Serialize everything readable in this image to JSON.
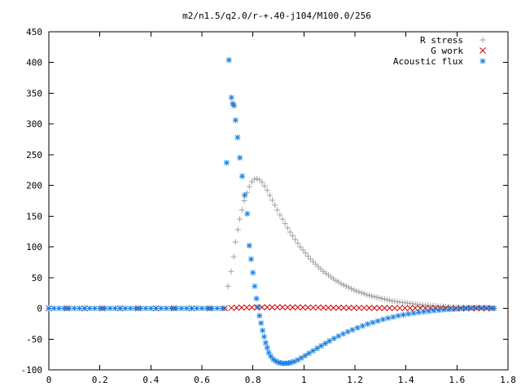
{
  "chart_data": {
    "type": "scatter",
    "title": "m2/n1.5/q2.0/r-+.40-j104/M100.0/256",
    "xlabel": "",
    "ylabel": "",
    "xlim": [
      0,
      1.8
    ],
    "ylim": [
      -100,
      450
    ],
    "x_ticks": [
      {
        "value": 0,
        "label": "0"
      },
      {
        "value": 0.2,
        "label": "0.2"
      },
      {
        "value": 0.4,
        "label": "0.4"
      },
      {
        "value": 0.6,
        "label": "0.6"
      },
      {
        "value": 0.8,
        "label": "0.8"
      },
      {
        "value": 1.0,
        "label": "1"
      },
      {
        "value": 1.2,
        "label": "1.2"
      },
      {
        "value": 1.4,
        "label": "1.4"
      },
      {
        "value": 1.6,
        "label": "1.6"
      },
      {
        "value": 1.8,
        "label": "1.8"
      }
    ],
    "y_ticks": [
      {
        "value": -100,
        "label": "-100"
      },
      {
        "value": -50,
        "label": "-50"
      },
      {
        "value": 0,
        "label": "0"
      },
      {
        "value": 50,
        "label": "50"
      },
      {
        "value": 100,
        "label": "100"
      },
      {
        "value": 150,
        "label": "150"
      },
      {
        "value": 200,
        "label": "200"
      },
      {
        "value": 250,
        "label": "250"
      },
      {
        "value": 300,
        "label": "300"
      },
      {
        "value": 350,
        "label": "350"
      },
      {
        "value": 400,
        "label": "400"
      },
      {
        "value": 450,
        "label": "450"
      }
    ],
    "grid": false,
    "legend_position": "top-right",
    "series": [
      {
        "name": "R stress",
        "marker": "plus",
        "color": "#a0a0a0",
        "points": [
          [
            0.0,
            0.0
          ],
          [
            0.07,
            0.0
          ],
          [
            0.14,
            0.0
          ],
          [
            0.21,
            0.0
          ],
          [
            0.28,
            0.0
          ],
          [
            0.35,
            0.0
          ],
          [
            0.42,
            0.0
          ],
          [
            0.49,
            0.0
          ],
          [
            0.56,
            0.0
          ],
          [
            0.63,
            0.0
          ],
          [
            0.69,
            0.0
          ],
          [
            0.702,
            36.0
          ],
          [
            0.715,
            60.0
          ],
          [
            0.725,
            84.0
          ],
          [
            0.732,
            108.0
          ],
          [
            0.741,
            128.0
          ],
          [
            0.748,
            145.0
          ],
          [
            0.757,
            160.0
          ],
          [
            0.766,
            175.0
          ],
          [
            0.776,
            188.0
          ],
          [
            0.786,
            198.0
          ],
          [
            0.796,
            206.0
          ],
          [
            0.806,
            210.0
          ],
          [
            0.816,
            211.0
          ],
          [
            0.826,
            209.0
          ],
          [
            0.836,
            205.0
          ],
          [
            0.846,
            199.0
          ],
          [
            0.856,
            192.0
          ],
          [
            0.866,
            184.0
          ],
          [
            0.876,
            176.0
          ],
          [
            0.886,
            168.0
          ],
          [
            0.896,
            160.0
          ],
          [
            0.906,
            152.0
          ],
          [
            0.916,
            145.0
          ],
          [
            0.926,
            138.0
          ],
          [
            0.936,
            131.0
          ],
          [
            0.946,
            124.0
          ],
          [
            0.956,
            118.0
          ],
          [
            0.966,
            112.0
          ],
          [
            0.976,
            106.0
          ],
          [
            0.986,
            100.0
          ],
          [
            0.996,
            95.0
          ],
          [
            1.006,
            90.0
          ],
          [
            1.016,
            85.0
          ],
          [
            1.026,
            80.0
          ],
          [
            1.036,
            76.0
          ],
          [
            1.046,
            72.0
          ],
          [
            1.056,
            68.0
          ],
          [
            1.066,
            64.0
          ],
          [
            1.076,
            60.0
          ],
          [
            1.086,
            57.0
          ],
          [
            1.096,
            54.0
          ],
          [
            1.106,
            51.0
          ],
          [
            1.116,
            48.0
          ],
          [
            1.126,
            45.0
          ],
          [
            1.136,
            43.0
          ],
          [
            1.146,
            40.0
          ],
          [
            1.156,
            38.0
          ],
          [
            1.166,
            36.0
          ],
          [
            1.176,
            34.0
          ],
          [
            1.186,
            32.0
          ],
          [
            1.196,
            30.0
          ],
          [
            1.206,
            28.0
          ],
          [
            1.216,
            27.0
          ],
          [
            1.226,
            25.0
          ],
          [
            1.236,
            24.0
          ],
          [
            1.246,
            22.0
          ],
          [
            1.256,
            21.0
          ],
          [
            1.266,
            20.0
          ],
          [
            1.276,
            19.0
          ],
          [
            1.286,
            18.0
          ],
          [
            1.296,
            17.0
          ],
          [
            1.306,
            16.0
          ],
          [
            1.316,
            15.0
          ],
          [
            1.326,
            14.0
          ],
          [
            1.336,
            13.0
          ],
          [
            1.346,
            12.0
          ],
          [
            1.356,
            11.5
          ],
          [
            1.366,
            11.0
          ],
          [
            1.376,
            10.0
          ],
          [
            1.386,
            9.5
          ],
          [
            1.396,
            9.0
          ],
          [
            1.406,
            8.5
          ],
          [
            1.416,
            8.0
          ],
          [
            1.426,
            7.5
          ],
          [
            1.436,
            7.0
          ],
          [
            1.446,
            6.5
          ],
          [
            1.456,
            6.0
          ],
          [
            1.466,
            5.5
          ],
          [
            1.476,
            5.0
          ],
          [
            1.486,
            4.8
          ],
          [
            1.496,
            4.5
          ],
          [
            1.506,
            4.2
          ],
          [
            1.516,
            4.0
          ],
          [
            1.526,
            3.6
          ],
          [
            1.536,
            3.3
          ],
          [
            1.546,
            3.0
          ],
          [
            1.556,
            2.8
          ],
          [
            1.566,
            2.5
          ],
          [
            1.576,
            2.3
          ],
          [
            1.586,
            2.0
          ],
          [
            1.596,
            1.8
          ],
          [
            1.606,
            1.6
          ],
          [
            1.616,
            1.4
          ],
          [
            1.626,
            1.2
          ],
          [
            1.636,
            1.0
          ],
          [
            1.646,
            0.9
          ],
          [
            1.656,
            0.8
          ],
          [
            1.666,
            0.6
          ],
          [
            1.676,
            0.5
          ],
          [
            1.686,
            0.4
          ],
          [
            1.696,
            0.3
          ],
          [
            1.706,
            0.2
          ],
          [
            1.716,
            0.1
          ],
          [
            1.726,
            0.1
          ],
          [
            1.736,
            0.0
          ],
          [
            1.746,
            0.0
          ]
        ]
      },
      {
        "name": "G work",
        "marker": "cross",
        "color": "#cc0000",
        "points": [
          [
            0.0,
            0.0
          ],
          [
            0.07,
            0.0
          ],
          [
            0.14,
            0.0
          ],
          [
            0.21,
            0.0
          ],
          [
            0.28,
            0.0
          ],
          [
            0.35,
            0.0
          ],
          [
            0.42,
            0.0
          ],
          [
            0.49,
            0.0
          ],
          [
            0.56,
            0.0
          ],
          [
            0.63,
            0.0
          ],
          [
            0.69,
            0.0
          ],
          [
            0.716,
            0.8
          ],
          [
            0.736,
            1.0
          ],
          [
            0.756,
            1.2
          ],
          [
            0.776,
            1.3
          ],
          [
            0.796,
            1.5
          ],
          [
            0.816,
            1.6
          ],
          [
            0.836,
            1.7
          ],
          [
            0.856,
            1.7
          ],
          [
            0.876,
            1.7
          ],
          [
            0.896,
            1.7
          ],
          [
            0.916,
            1.7
          ],
          [
            0.936,
            1.6
          ],
          [
            0.956,
            1.6
          ],
          [
            0.976,
            1.5
          ],
          [
            0.996,
            1.5
          ],
          [
            1.016,
            1.4
          ],
          [
            1.036,
            1.3
          ],
          [
            1.056,
            1.3
          ],
          [
            1.076,
            1.2
          ],
          [
            1.096,
            1.1
          ],
          [
            1.116,
            1.1
          ],
          [
            1.136,
            1.0
          ],
          [
            1.156,
            1.0
          ],
          [
            1.176,
            0.9
          ],
          [
            1.196,
            0.9
          ],
          [
            1.216,
            0.8
          ],
          [
            1.236,
            0.8
          ],
          [
            1.256,
            0.7
          ],
          [
            1.276,
            0.7
          ],
          [
            1.296,
            0.6
          ],
          [
            1.316,
            0.6
          ],
          [
            1.336,
            0.6
          ],
          [
            1.356,
            0.5
          ],
          [
            1.376,
            0.5
          ],
          [
            1.396,
            0.5
          ],
          [
            1.416,
            0.4
          ],
          [
            1.436,
            0.4
          ],
          [
            1.456,
            0.4
          ],
          [
            1.476,
            0.3
          ],
          [
            1.496,
            0.3
          ],
          [
            1.516,
            0.3
          ],
          [
            1.536,
            0.3
          ],
          [
            1.556,
            0.2
          ],
          [
            1.576,
            0.2
          ],
          [
            1.596,
            0.2
          ],
          [
            1.616,
            0.2
          ],
          [
            1.636,
            0.1
          ],
          [
            1.656,
            0.1
          ],
          [
            1.676,
            0.1
          ],
          [
            1.696,
            0.1
          ],
          [
            1.716,
            0.1
          ],
          [
            1.736,
            0.0
          ]
        ]
      },
      {
        "name": "Acoustic flux",
        "marker": "star",
        "color": "#1a80e0",
        "points": [
          [
            0.0,
            0.0
          ],
          [
            0.02,
            0.0
          ],
          [
            0.04,
            0.0
          ],
          [
            0.06,
            0.0
          ],
          [
            0.08,
            0.0
          ],
          [
            0.1,
            0.0
          ],
          [
            0.12,
            0.0
          ],
          [
            0.14,
            0.0
          ],
          [
            0.16,
            0.0
          ],
          [
            0.18,
            0.0
          ],
          [
            0.2,
            0.0
          ],
          [
            0.22,
            0.0
          ],
          [
            0.24,
            0.0
          ],
          [
            0.26,
            0.0
          ],
          [
            0.28,
            0.0
          ],
          [
            0.3,
            0.0
          ],
          [
            0.32,
            0.0
          ],
          [
            0.34,
            0.0
          ],
          [
            0.36,
            0.0
          ],
          [
            0.38,
            0.0
          ],
          [
            0.4,
            0.0
          ],
          [
            0.42,
            0.0
          ],
          [
            0.44,
            0.0
          ],
          [
            0.46,
            0.0
          ],
          [
            0.48,
            0.0
          ],
          [
            0.5,
            0.0
          ],
          [
            0.52,
            0.0
          ],
          [
            0.54,
            0.0
          ],
          [
            0.56,
            0.0
          ],
          [
            0.58,
            0.0
          ],
          [
            0.6,
            0.0
          ],
          [
            0.62,
            0.0
          ],
          [
            0.64,
            0.0
          ],
          [
            0.66,
            0.0
          ],
          [
            0.68,
            0.0
          ],
          [
            0.697,
            237.0
          ],
          [
            0.706,
            404.0
          ],
          [
            0.716,
            343.0
          ],
          [
            0.721,
            333.0
          ],
          [
            0.726,
            330.0
          ],
          [
            0.732,
            306.0
          ],
          [
            0.74,
            278.0
          ],
          [
            0.749,
            245.0
          ],
          [
            0.758,
            215.0
          ],
          [
            0.768,
            184.0
          ],
          [
            0.778,
            154.0
          ],
          [
            0.786,
            102.0
          ],
          [
            0.793,
            80.0
          ],
          [
            0.8,
            58.0
          ],
          [
            0.807,
            36.0
          ],
          [
            0.814,
            16.0
          ],
          [
            0.82,
            2.0
          ],
          [
            0.826,
            -12.0
          ],
          [
            0.832,
            -24.0
          ],
          [
            0.838,
            -36.0
          ],
          [
            0.844,
            -46.0
          ],
          [
            0.85,
            -56.0
          ],
          [
            0.856,
            -64.0
          ],
          [
            0.862,
            -72.0
          ],
          [
            0.87,
            -78.0
          ],
          [
            0.88,
            -83.0
          ],
          [
            0.89,
            -86.0
          ],
          [
            0.9,
            -88.0
          ],
          [
            0.91,
            -89.0
          ],
          [
            0.92,
            -89.5
          ],
          [
            0.93,
            -89.5
          ],
          [
            0.94,
            -89.0
          ],
          [
            0.95,
            -88.0
          ],
          [
            0.962,
            -86.5
          ],
          [
            0.976,
            -84.0
          ],
          [
            0.99,
            -80.5
          ],
          [
            1.005,
            -77.0
          ],
          [
            1.02,
            -73.0
          ],
          [
            1.036,
            -69.0
          ],
          [
            1.052,
            -65.0
          ],
          [
            1.068,
            -61.0
          ],
          [
            1.084,
            -57.0
          ],
          [
            1.1,
            -53.0
          ],
          [
            1.118,
            -49.0
          ],
          [
            1.136,
            -45.0
          ],
          [
            1.154,
            -41.5
          ],
          [
            1.172,
            -38.0
          ],
          [
            1.19,
            -35.0
          ],
          [
            1.21,
            -31.5
          ],
          [
            1.23,
            -28.5
          ],
          [
            1.25,
            -25.5
          ],
          [
            1.27,
            -23.0
          ],
          [
            1.29,
            -20.5
          ],
          [
            1.31,
            -18.0
          ],
          [
            1.33,
            -16.0
          ],
          [
            1.35,
            -14.0
          ],
          [
            1.37,
            -12.0
          ],
          [
            1.39,
            -10.5
          ],
          [
            1.41,
            -9.0
          ],
          [
            1.43,
            -7.7
          ],
          [
            1.45,
            -6.5
          ],
          [
            1.47,
            -5.5
          ],
          [
            1.49,
            -4.5
          ],
          [
            1.51,
            -3.7
          ],
          [
            1.53,
            -3.0
          ],
          [
            1.55,
            -2.3
          ],
          [
            1.57,
            -1.7
          ],
          [
            1.59,
            -1.2
          ],
          [
            1.61,
            -0.6
          ],
          [
            1.63,
            0.0
          ],
          [
            1.65,
            0.5
          ],
          [
            1.67,
            1.0
          ],
          [
            1.69,
            1.2
          ],
          [
            1.71,
            1.2
          ],
          [
            1.73,
            0.8
          ],
          [
            1.745,
            0.3
          ]
        ]
      }
    ]
  }
}
